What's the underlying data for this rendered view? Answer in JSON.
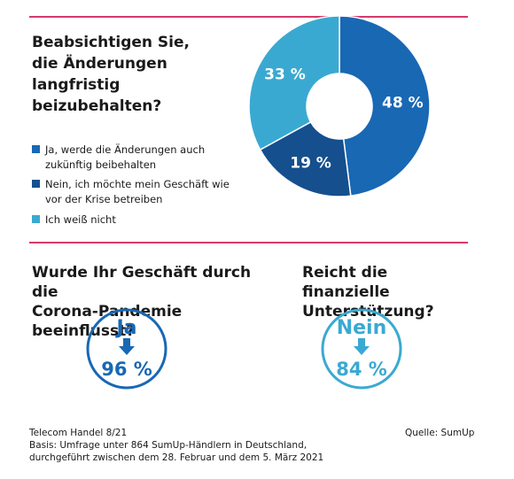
{
  "colors": {
    "accent_rule": "#d63a6a",
    "blue_mid": "#1868b4",
    "blue_dark": "#154f8e",
    "blue_light": "#3aa9d1"
  },
  "q1": {
    "title": "Beabsichtigen Sie,\ndie Änderungen\nlangfristig\nbeizubehalten?",
    "legend": [
      {
        "label": "Ja, werde die Änderungen auch zukünftig beibehalten",
        "color": "#1868b4"
      },
      {
        "label": "Nein, ich möchte mein Geschäft wie vor der Krise betreiben",
        "color": "#154f8e"
      },
      {
        "label": "Ich weiß nicht",
        "color": "#3aa9d1"
      }
    ]
  },
  "q2": {
    "title": "Wurde Ihr Geschäft durch die\nCorona-Pandemie beeinflusst?",
    "answer": "Ja",
    "percent_label": "96 %",
    "color": "#1868b4"
  },
  "q3": {
    "title": "Reicht die finanzielle\nUnterstützung?",
    "answer": "Nein",
    "percent_label": "84 %",
    "color": "#3aa9d1"
  },
  "chart_data": [
    {
      "type": "pie",
      "categories": [
        "Ja, werde die Änderungen auch zukünftig beibehalten",
        "Nein, ich möchte mein Geschäft wie vor der Krise betreiben",
        "Ich weiß nicht"
      ],
      "values": [
        48,
        19,
        33
      ],
      "labels": [
        "48 %",
        "19 %",
        "33 %"
      ],
      "colors": [
        "#1868b4",
        "#154f8e",
        "#3aa9d1"
      ],
      "donut": true,
      "title": "Beabsichtigen Sie, die Änderungen langfristig beizubehalten?"
    },
    {
      "type": "table",
      "title": "Wurde Ihr Geschäft durch die Corona-Pandemie beeinflusst?",
      "categories": [
        "Ja"
      ],
      "values": [
        96
      ]
    },
    {
      "type": "table",
      "title": "Reicht die finanzielle Unterstützung?",
      "categories": [
        "Nein"
      ],
      "values": [
        84
      ]
    }
  ],
  "footer": {
    "left": "Telecom Handel 8/21\nBasis: Umfrage unter 864 SumUp-Händlern in Deutschland,\ndurchgeführt zwischen dem 28. Februar und dem 5. März 2021",
    "right": "Quelle: SumUp"
  }
}
